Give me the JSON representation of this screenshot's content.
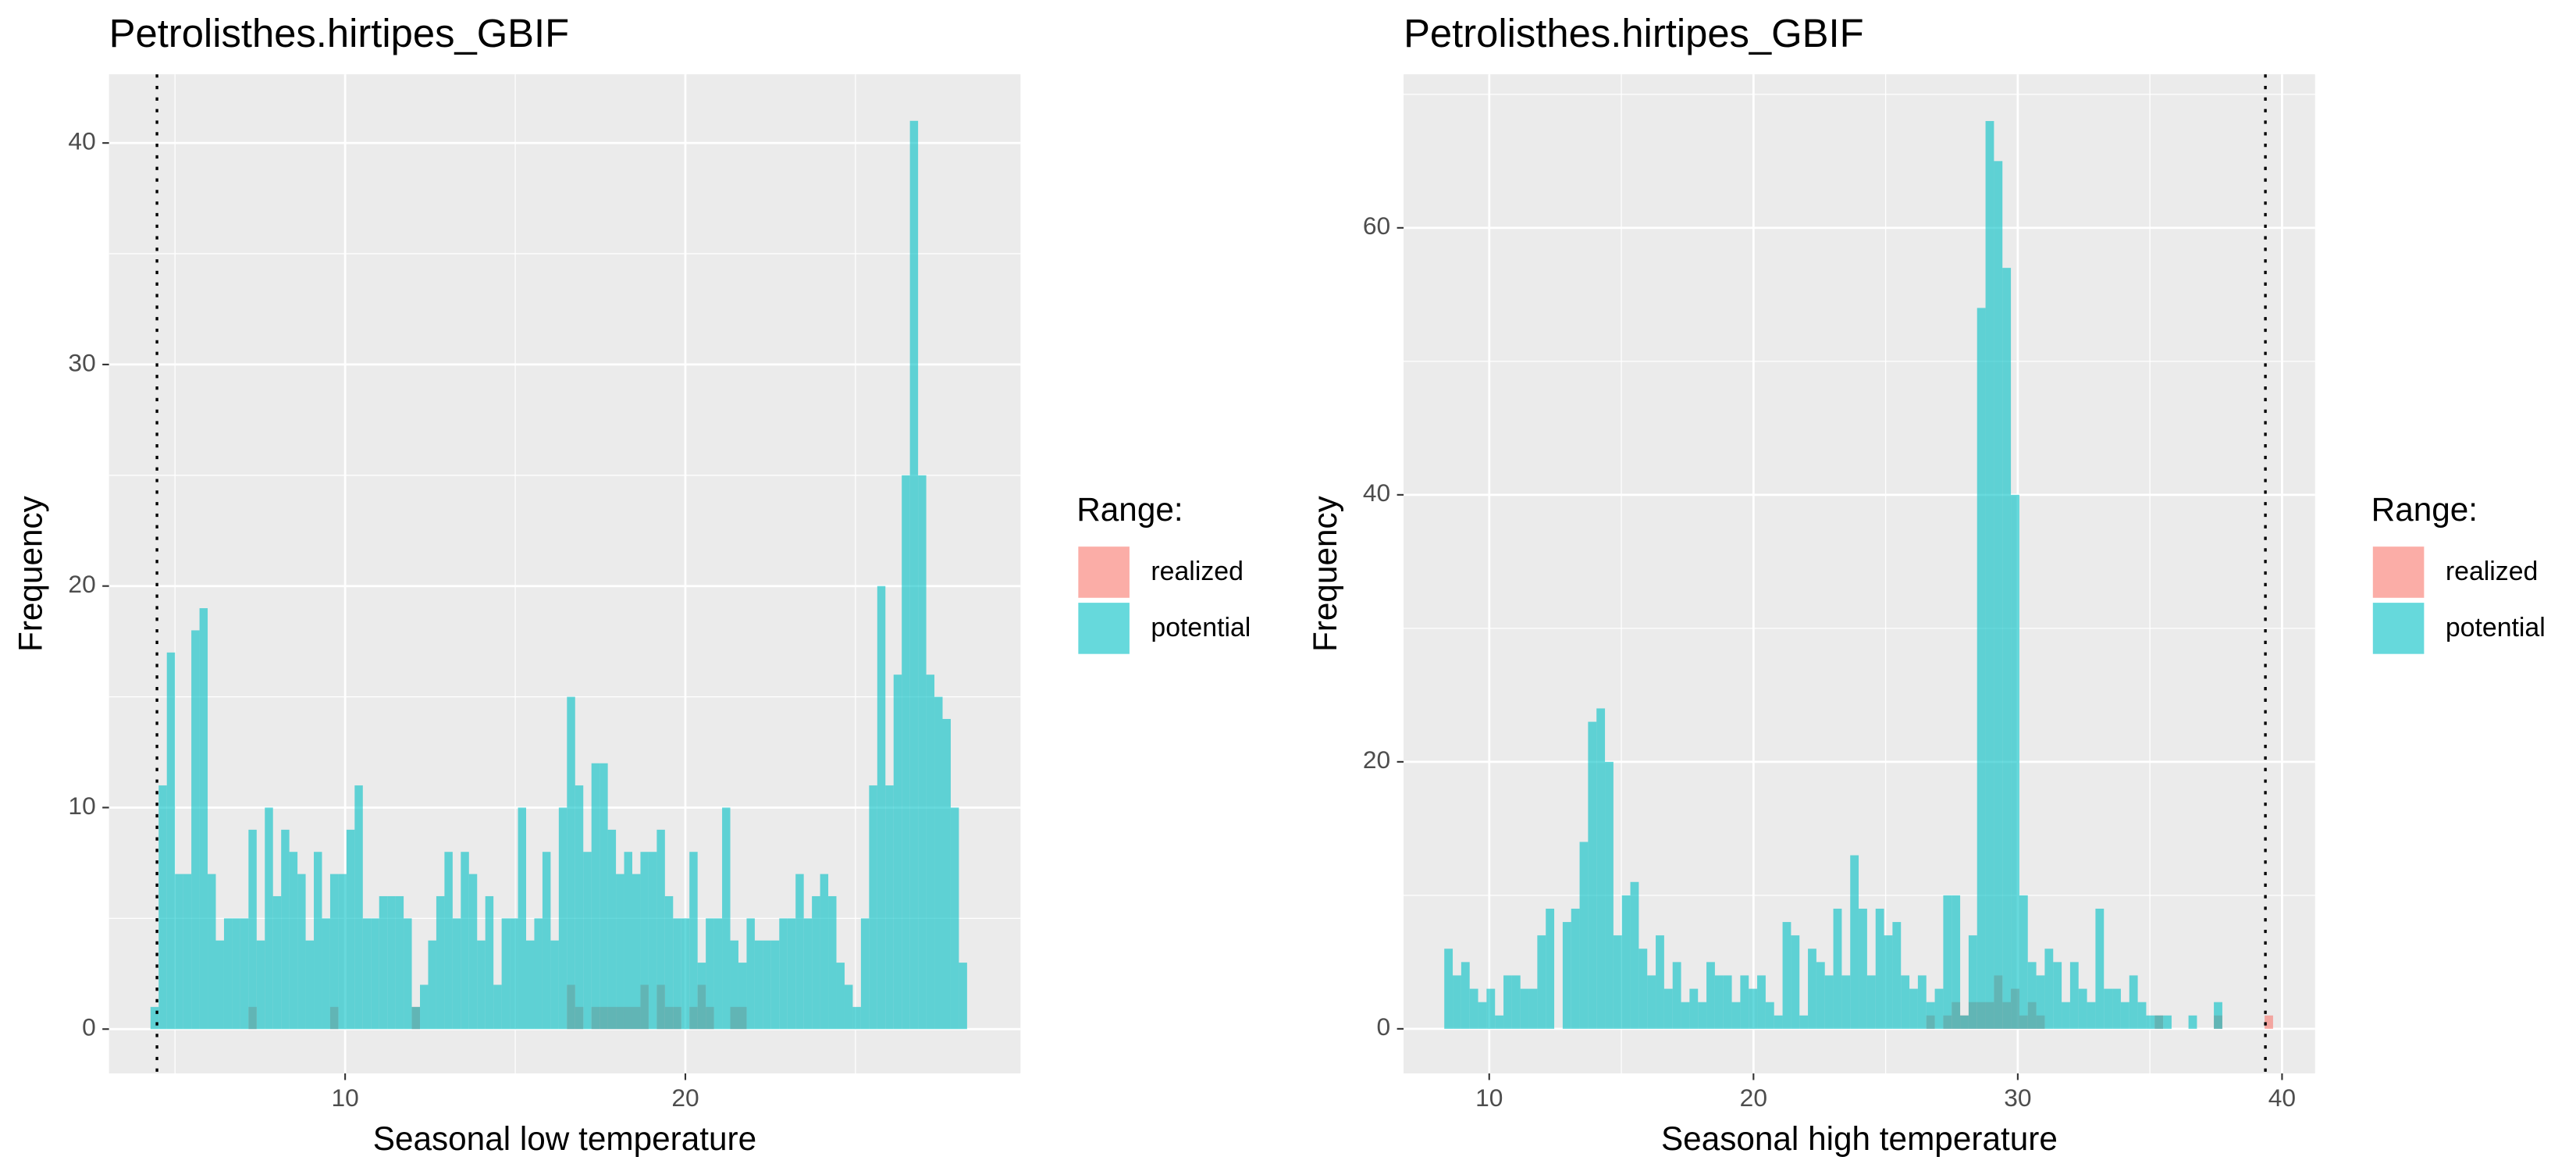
{
  "chart_data": [
    {
      "type": "histogram",
      "title": "Petrolisthes.hirtipes_GBIF",
      "x_label": "Seasonal low temperature",
      "y_label": "Frequency",
      "legend_title": "Range:",
      "legend_position": "right",
      "xlim": [
        3.06,
        29.85
      ],
      "ylim": [
        -2.0,
        43.1
      ],
      "xticks": [
        10,
        20
      ],
      "yticks": [
        0,
        10,
        20,
        30,
        40
      ],
      "grid": true,
      "vline": 4.47,
      "bins": [
        4.28,
        4.52,
        4.76,
        5.0,
        5.24,
        5.48,
        5.72,
        5.96,
        6.2,
        6.44,
        6.68,
        6.92,
        7.16,
        7.4,
        7.64,
        7.88,
        8.12,
        8.36,
        8.6,
        8.84,
        9.08,
        9.32,
        9.56,
        9.8,
        10.04,
        10.28,
        10.52,
        10.76,
        11.0,
        11.24,
        11.48,
        11.72,
        11.96,
        12.2,
        12.44,
        12.68,
        12.92,
        13.16,
        13.4,
        13.64,
        13.88,
        14.12,
        14.36,
        14.6,
        14.84,
        15.08,
        15.32,
        15.56,
        15.8,
        16.04,
        16.28,
        16.52,
        16.76,
        17.0,
        17.24,
        17.48,
        17.72,
        17.96,
        18.2,
        18.44,
        18.68,
        18.92,
        19.16,
        19.4,
        19.64,
        19.88,
        20.12,
        20.36,
        20.6,
        20.84,
        21.08,
        21.32,
        21.56,
        21.8,
        22.04,
        22.28,
        22.52,
        22.76,
        23.0,
        23.24,
        23.48,
        23.72,
        23.96,
        24.2,
        24.44,
        24.68,
        24.92,
        25.16,
        25.4,
        25.64,
        25.88,
        26.12,
        26.36,
        26.6,
        26.84,
        27.08,
        27.32,
        27.56,
        27.8,
        28.04,
        28.28
      ],
      "series": [
        {
          "name": "realized",
          "color": "#F8766D",
          "values": [
            0,
            0,
            0,
            0,
            0,
            0,
            0,
            0,
            0,
            0,
            0,
            0,
            1,
            0,
            0,
            0,
            0,
            0,
            0,
            0,
            0,
            0,
            1,
            0,
            0,
            0,
            0,
            0,
            0,
            0,
            0,
            0,
            1,
            0,
            0,
            0,
            0,
            0,
            0,
            0,
            0,
            0,
            0,
            0,
            0,
            0,
            0,
            0,
            0,
            0,
            0,
            2,
            1,
            0,
            1,
            1,
            1,
            1,
            1,
            1,
            2,
            0,
            2,
            1,
            1,
            0,
            1,
            2,
            1,
            0,
            0,
            1,
            1,
            0,
            0,
            0,
            0,
            0,
            0,
            0,
            0,
            0,
            0,
            0,
            0,
            0,
            0,
            0,
            0,
            0,
            0,
            0,
            0,
            0,
            0,
            0,
            0,
            0,
            0,
            0
          ]
        },
        {
          "name": "potential",
          "color": "#00BFC4",
          "values": [
            1,
            11,
            17,
            7,
            7,
            18,
            19,
            7,
            4,
            5,
            5,
            5,
            9,
            4,
            10,
            6,
            9,
            8,
            7,
            4,
            8,
            5,
            7,
            7,
            9,
            11,
            5,
            5,
            6,
            6,
            6,
            5,
            1,
            2,
            4,
            6,
            8,
            5,
            8,
            7,
            4,
            6,
            2,
            5,
            5,
            10,
            4,
            5,
            8,
            4,
            10,
            15,
            11,
            8,
            12,
            12,
            9,
            7,
            8,
            7,
            8,
            8,
            9,
            6,
            5,
            5,
            8,
            3,
            5,
            5,
            10,
            4,
            3,
            5,
            4,
            4,
            4,
            5,
            5,
            7,
            5,
            6,
            7,
            6,
            3,
            2,
            1,
            5,
            11,
            20,
            11,
            16,
            25,
            41,
            25,
            16,
            15,
            14,
            10,
            3
          ]
        }
      ]
    },
    {
      "type": "histogram",
      "title": "Petrolisthes.hirtipes_GBIF",
      "x_label": "Seasonal high temperature",
      "y_label": "Frequency",
      "legend_title": "Range:",
      "legend_position": "right",
      "xlim": [
        6.76,
        41.25
      ],
      "ylim": [
        -3.34,
        71.5
      ],
      "xticks": [
        10,
        20,
        30,
        40
      ],
      "yticks": [
        0,
        20,
        40,
        60
      ],
      "grid": true,
      "vline": 39.37,
      "bins": [
        8.3,
        8.62,
        8.94,
        9.26,
        9.58,
        9.9,
        10.22,
        10.54,
        10.86,
        11.18,
        11.5,
        11.82,
        12.14,
        12.46,
        12.78,
        13.1,
        13.42,
        13.74,
        14.06,
        14.38,
        14.7,
        15.02,
        15.34,
        15.66,
        15.98,
        16.3,
        16.62,
        16.94,
        17.26,
        17.58,
        17.9,
        18.22,
        18.54,
        18.86,
        19.18,
        19.5,
        19.82,
        20.14,
        20.46,
        20.78,
        21.1,
        21.42,
        21.74,
        22.06,
        22.38,
        22.7,
        23.02,
        23.34,
        23.66,
        23.98,
        24.3,
        24.62,
        24.94,
        25.26,
        25.58,
        25.9,
        26.22,
        26.54,
        26.86,
        27.18,
        27.5,
        27.82,
        28.14,
        28.46,
        28.78,
        29.1,
        29.42,
        29.74,
        30.06,
        30.38,
        30.7,
        31.02,
        31.34,
        31.66,
        31.98,
        32.3,
        32.62,
        32.94,
        33.26,
        33.58,
        33.9,
        34.22,
        34.54,
        34.86,
        35.18,
        35.5,
        35.82,
        36.14,
        36.46,
        36.78,
        37.1,
        37.42,
        37.74,
        38.06,
        38.38,
        38.7,
        39.02,
        39.34,
        39.66,
        39.98,
        40.3
      ],
      "series": [
        {
          "name": "realized",
          "color": "#F8766D",
          "values": [
            0,
            0,
            0,
            0,
            0,
            0,
            0,
            0,
            0,
            0,
            0,
            0,
            0,
            0,
            0,
            0,
            0,
            0,
            0,
            0,
            0,
            0,
            0,
            0,
            0,
            0,
            0,
            0,
            0,
            0,
            0,
            0,
            0,
            0,
            0,
            0,
            0,
            0,
            0,
            0,
            0,
            0,
            0,
            0,
            0,
            0,
            0,
            0,
            0,
            0,
            0,
            0,
            0,
            0,
            0,
            0,
            0,
            1,
            0,
            1,
            2,
            1,
            2,
            2,
            2,
            4,
            2,
            3,
            1,
            2,
            1,
            0,
            0,
            0,
            0,
            0,
            0,
            0,
            0,
            0,
            0,
            0,
            0,
            0,
            1,
            0,
            0,
            0,
            0,
            0,
            0,
            1,
            0,
            0,
            0,
            0,
            0,
            1,
            0,
            0
          ]
        },
        {
          "name": "potential",
          "color": "#00BFC4",
          "values": [
            6,
            4,
            5,
            3,
            2,
            3,
            1,
            4,
            4,
            3,
            3,
            7,
            9,
            0,
            8,
            9,
            14,
            23,
            24,
            20,
            7,
            10,
            11,
            6,
            4,
            7,
            3,
            5,
            2,
            3,
            2,
            5,
            4,
            4,
            2,
            4,
            3,
            4,
            2,
            1,
            8,
            7,
            1,
            6,
            5,
            4,
            9,
            4,
            13,
            9,
            4,
            9,
            7,
            8,
            4,
            3,
            4,
            2,
            3,
            10,
            10,
            1,
            7,
            54,
            68,
            65,
            57,
            40,
            10,
            5,
            4,
            6,
            5,
            2,
            5,
            3,
            2,
            9,
            3,
            3,
            2,
            4,
            2,
            1,
            1,
            1,
            0,
            0,
            1,
            0,
            0,
            2,
            0,
            0,
            0,
            0,
            0,
            0,
            0,
            0
          ]
        }
      ]
    }
  ]
}
